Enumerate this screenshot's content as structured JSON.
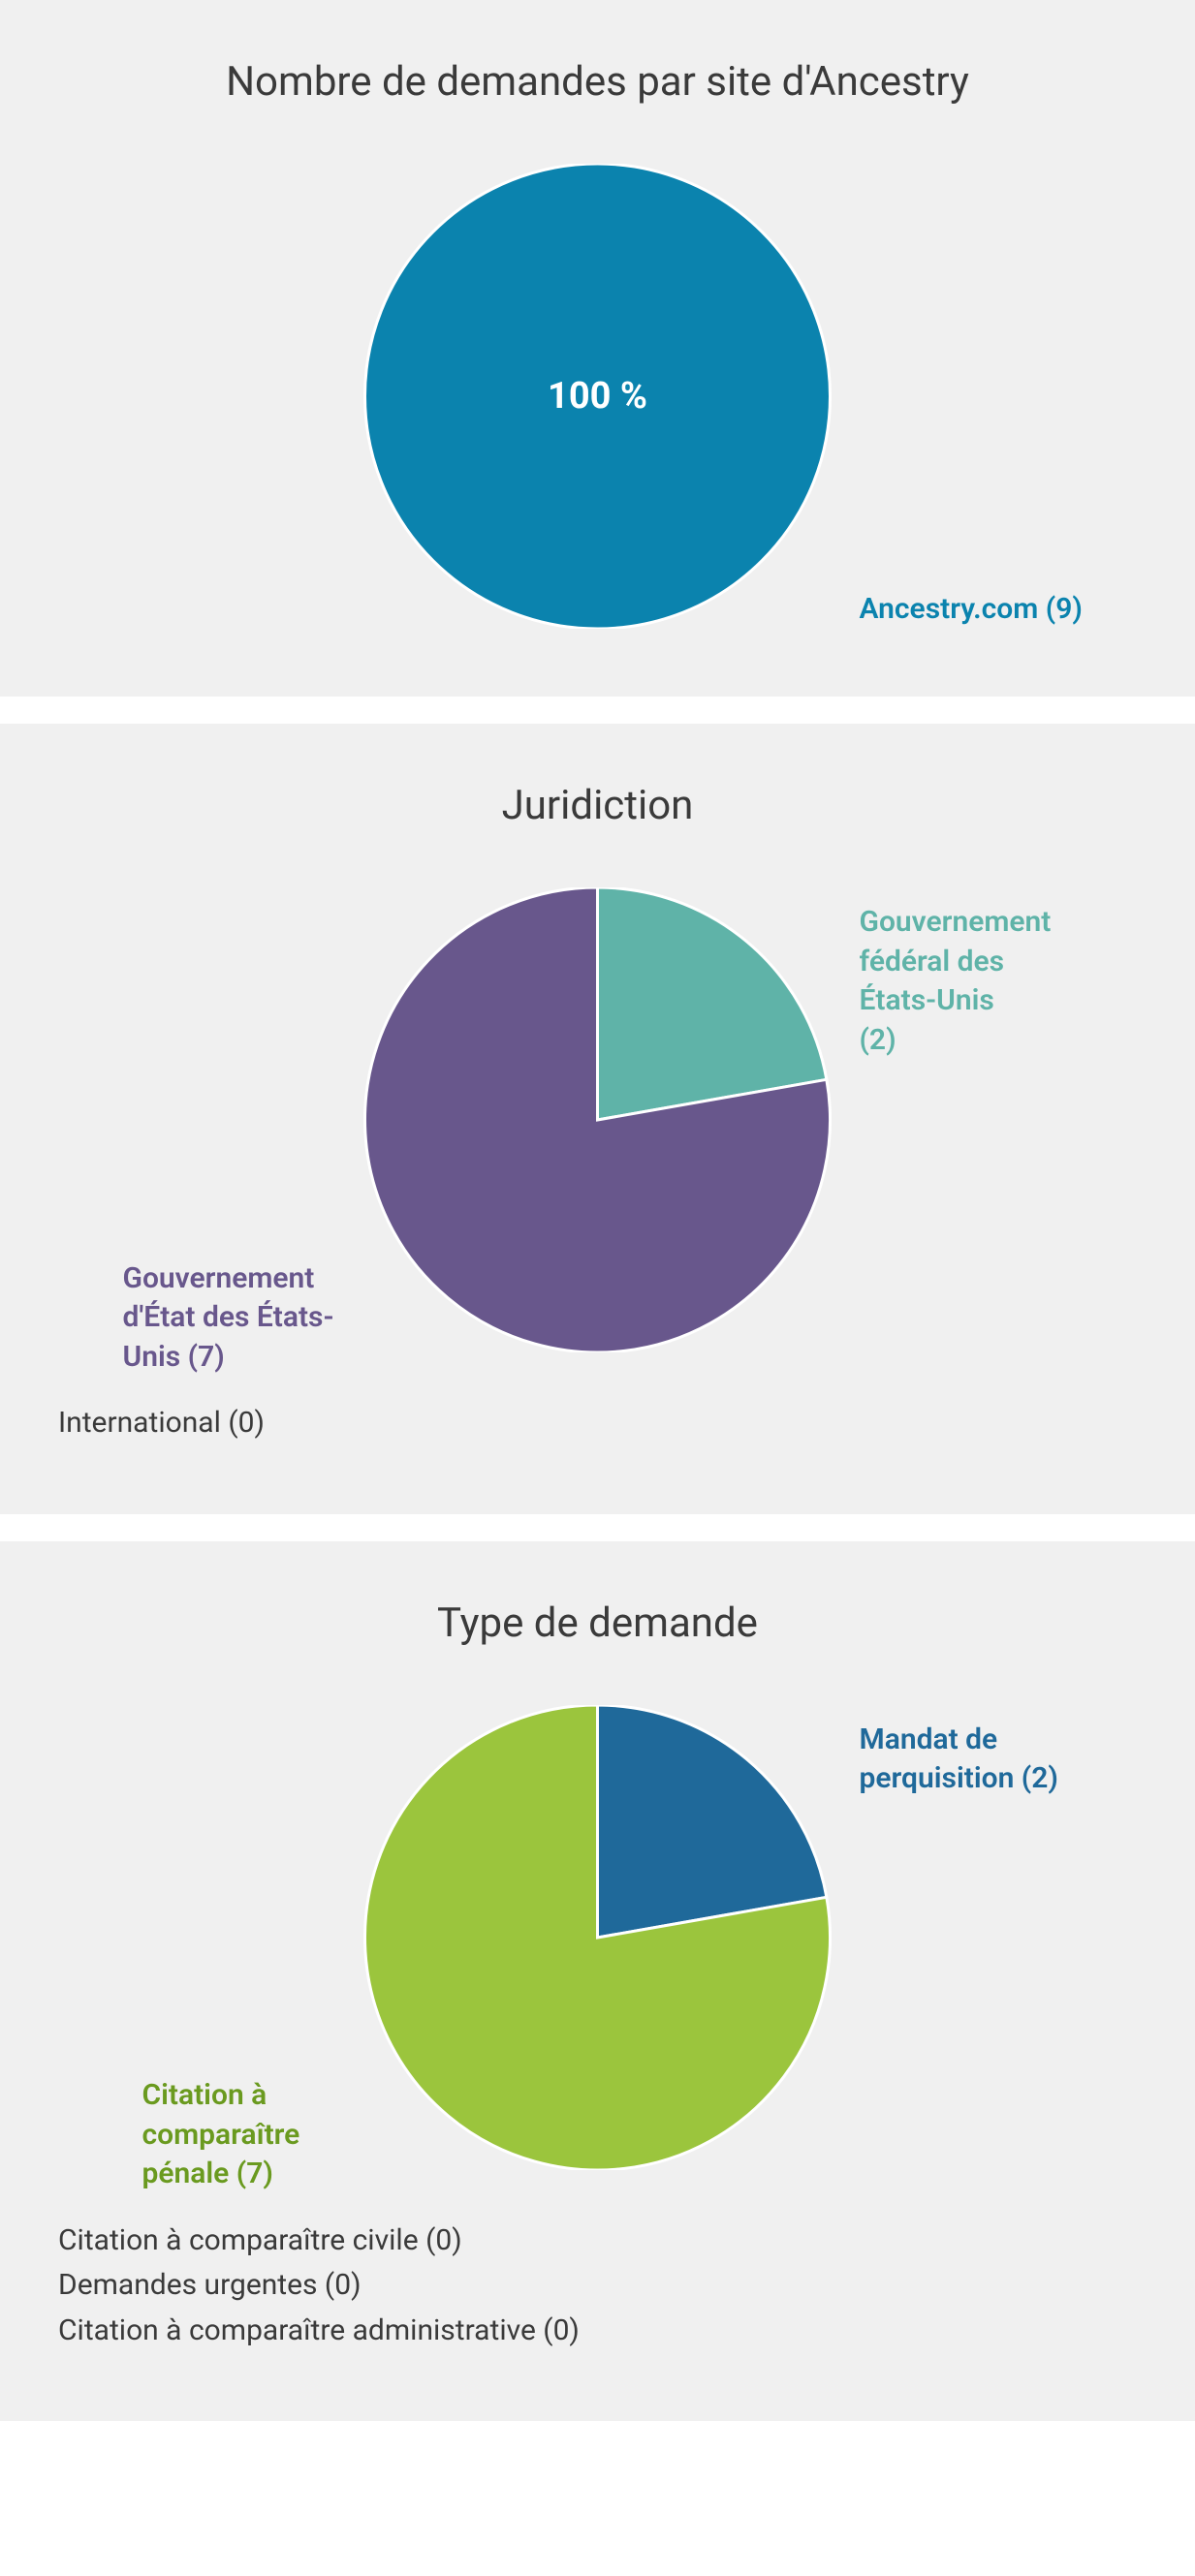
{
  "panels": [
    {
      "key": "site",
      "title": "Nombre de demandes par site d'Ancestry",
      "pie": {
        "diameter": 480,
        "stroke_color": "#ffffff",
        "stroke_width": 3,
        "slices": [
          {
            "label": "Ancestry.com (9)",
            "value": 9,
            "color": "#0b83ae",
            "label_color": "#0b83ae",
            "label_side": "right"
          }
        ],
        "center_text": "100 %",
        "center_text_color": "#ffffff"
      },
      "zero_items": []
    },
    {
      "key": "jurisdiction",
      "title": "Juridiction",
      "pie": {
        "diameter": 480,
        "stroke_color": "#ffffff",
        "stroke_width": 3,
        "slices": [
          {
            "label": "Gouvernement fédéral des États-Unis (2)",
            "value": 2,
            "color": "#5fb3a8",
            "label_color": "#5fb3a8",
            "label_side": "right",
            "label_wrap": 180
          },
          {
            "label": "Gouvernement d'État des États-Unis (7)",
            "value": 7,
            "color": "#68578c",
            "label_color": "#68578c",
            "label_side": "left",
            "label_wrap": 220
          }
        ]
      },
      "zero_items": [
        "International (0)"
      ]
    },
    {
      "key": "type",
      "title": "Type de demande",
      "pie": {
        "diameter": 480,
        "stroke_color": "#ffffff",
        "stroke_width": 3,
        "slices": [
          {
            "label": "Mandat de perquisition (2)",
            "value": 2,
            "color": "#1f699a",
            "label_color": "#1f699a",
            "label_side": "right",
            "label_wrap": 220
          },
          {
            "label": "Citation à comparaître pénale (7)",
            "value": 7,
            "color": "#9bc53d",
            "label_color": "#6a9a1f",
            "label_side": "left",
            "label_wrap": 200
          }
        ]
      },
      "zero_items": [
        "Citation à comparaître civile (0)",
        "Demandes urgentes (0)",
        "Citation à comparaître administrative (0)"
      ]
    }
  ]
}
